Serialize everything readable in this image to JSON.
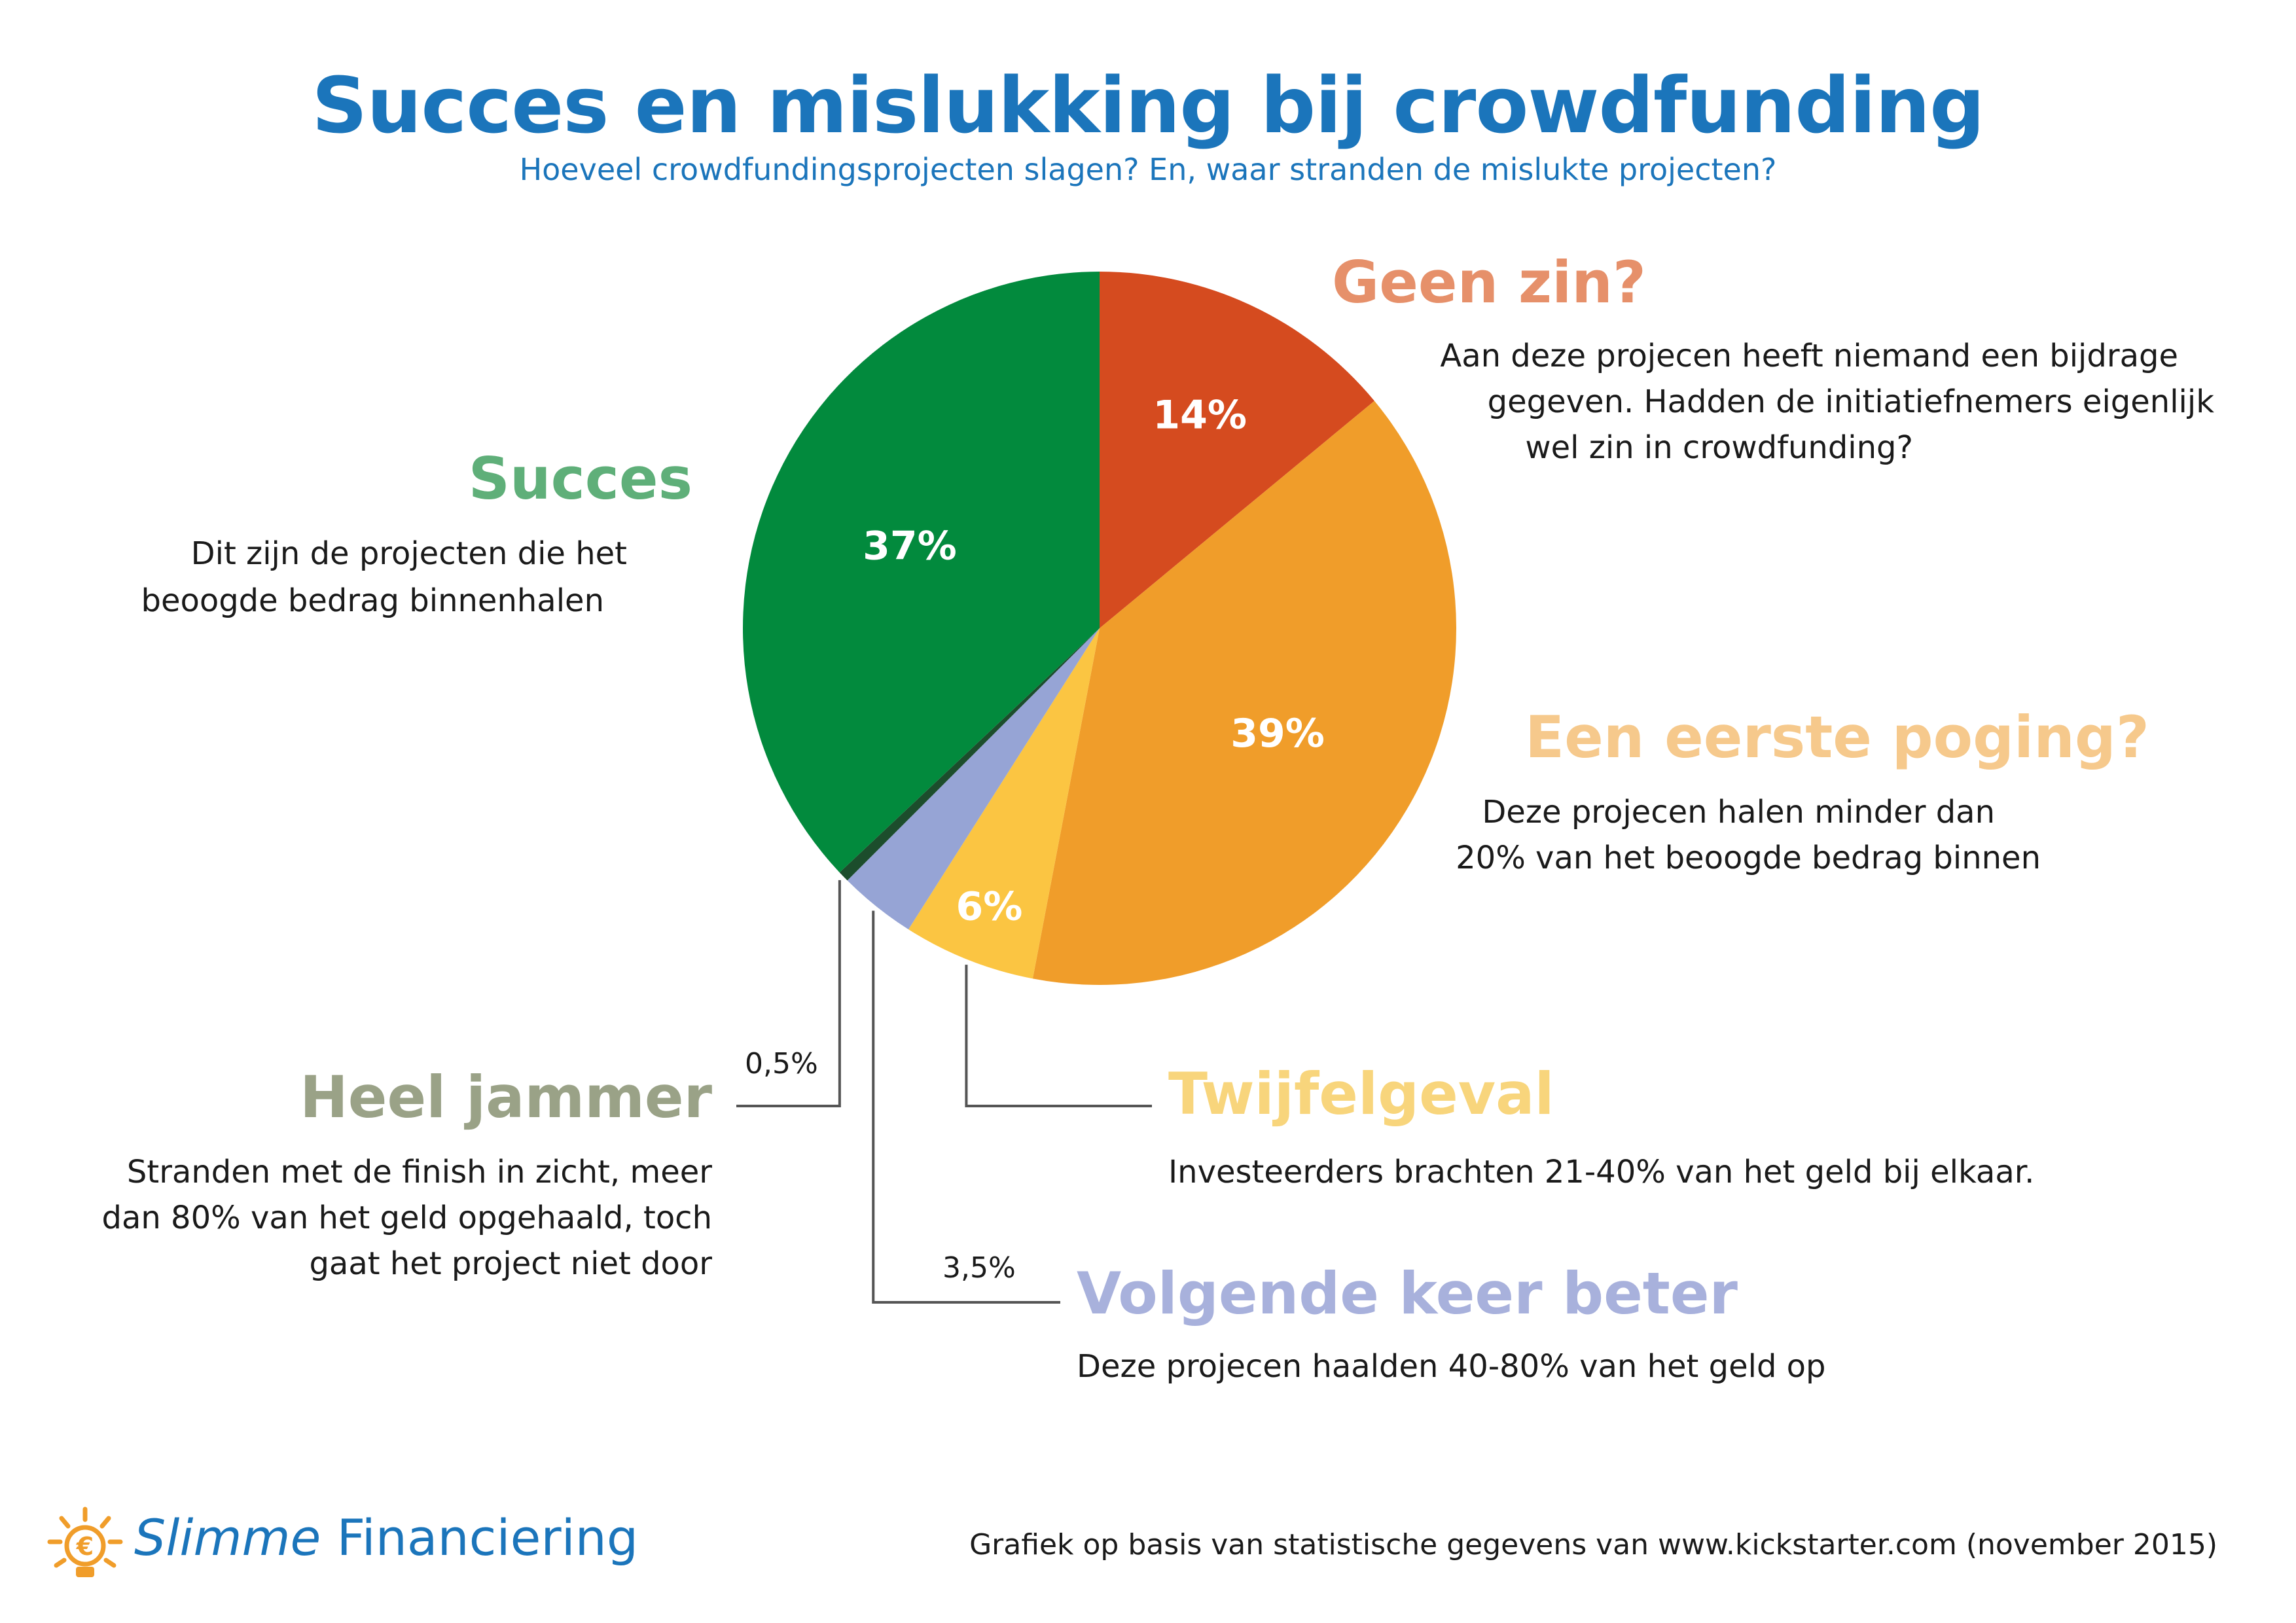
{
  "header": {
    "title": "Succes en mislukking bij crowdfunding",
    "subtitle": "Hoeveel crowdfundingsprojecten slagen? En, waar stranden de mislukte projecten?"
  },
  "chart_data": {
    "type": "pie",
    "start_angle_deg": 0,
    "direction": "clockwise",
    "slices": [
      {
        "key": "geen_zin",
        "value": 14,
        "label": "14%",
        "color": "#d54b1f"
      },
      {
        "key": "eerste_poging",
        "value": 39,
        "label": "39%",
        "color": "#f09d2a"
      },
      {
        "key": "twijfelgeval",
        "value": 6,
        "label": "6%",
        "color": "#fbc542"
      },
      {
        "key": "volgende_keer",
        "value": 3.5,
        "label": "3,5%",
        "color": "#96a4d5"
      },
      {
        "key": "heel_jammer",
        "value": 0.5,
        "label": "0,5%",
        "color": "#1c4d2c"
      },
      {
        "key": "succes",
        "value": 37,
        "label": "37%",
        "color": "#028a3d"
      }
    ]
  },
  "annotations": {
    "succes": {
      "heading": "Succes",
      "heading_color": "#5faf79",
      "lines": [
        "Dit zijn de projecten die het",
        "beoogde bedrag binnenhalen"
      ]
    },
    "geen_zin": {
      "heading": "Geen zin?",
      "heading_color": "#e6906a",
      "lines": [
        "Aan deze projecen heeft niemand een bijdrage",
        "gegeven. Hadden de initiatiefnemers eigenlijk",
        "wel zin in crowdfunding?"
      ]
    },
    "eerste_poging": {
      "heading": "Een eerste poging?",
      "heading_color": "#f6c98c",
      "lines": [
        "Deze projecen halen minder dan",
        "20% van het beoogde bedrag binnen"
      ]
    },
    "twijfelgeval": {
      "heading": "Twijfelgeval",
      "heading_color": "#f8d57c",
      "lines": [
        "Investeerders brachten 21-40% van het geld bij elkaar."
      ]
    },
    "volgende_keer": {
      "heading": "Volgende keer beter",
      "heading_color": "#a8b1dc",
      "value_label": "3,5%",
      "lines": [
        "Deze projecen haalden 40-80% van het geld op"
      ]
    },
    "heel_jammer": {
      "heading": "Heel jammer",
      "heading_color": "#9aa287",
      "value_label": "0,5%",
      "lines": [
        "Stranden met de finish in zicht, meer",
        "dan 80% van het geld opgehaald, toch",
        "gaat het project niet door"
      ]
    }
  },
  "footer": {
    "brand_italic": "Slimme",
    "brand_rest": " Financiering",
    "brand_color": "#1b75bb",
    "logo_color": "#f09d2a",
    "source": "Grafiek op basis van statistische gegevens van www.kickstarter.com (november 2015)"
  }
}
